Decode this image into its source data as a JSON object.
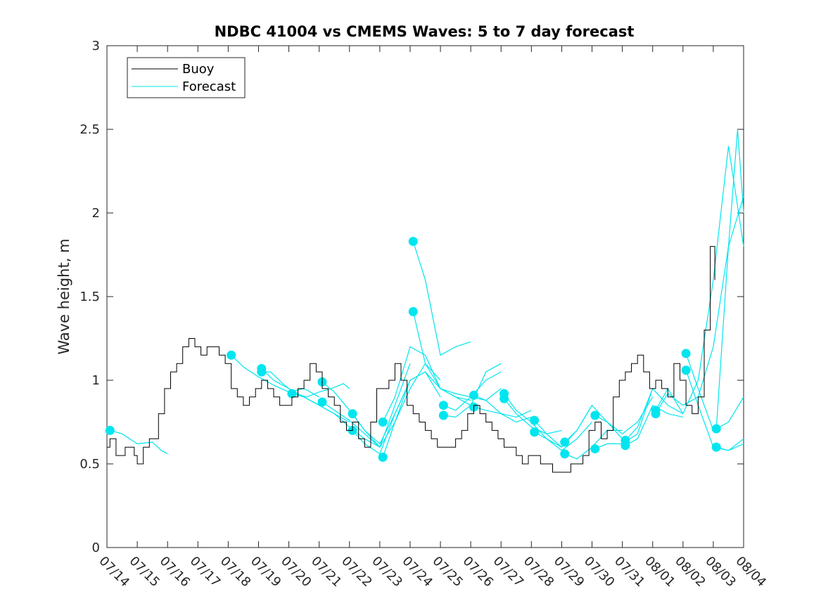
{
  "chart_data": {
    "type": "line",
    "title": "NDBC 41004 vs CMEMS Waves: 5 to 7 day forecast",
    "xlabel": "",
    "ylabel": "Wave height, m",
    "ylim": [
      0,
      3
    ],
    "yticks": [
      0,
      0.5,
      1,
      1.5,
      2,
      2.5,
      3
    ],
    "ytick_labels": [
      "0",
      "0.5",
      "1",
      "1.5",
      "2",
      "2.5",
      "3"
    ],
    "xlim_days": [
      0,
      21
    ],
    "x_tick_labels": [
      "07/14",
      "07/15",
      "07/16",
      "07/17",
      "07/18",
      "07/19",
      "07/20",
      "07/21",
      "07/22",
      "07/23",
      "07/24",
      "07/25",
      "07/26",
      "07/27",
      "07/28",
      "07/29",
      "07/30",
      "07/31",
      "08/01",
      "08/02",
      "08/03",
      "08/04"
    ],
    "grid": false,
    "legend": {
      "placement": "top-left",
      "entries": [
        "Buoy",
        "Forecast"
      ]
    },
    "colors": {
      "buoy": "#000000",
      "forecast": "#00e5ee"
    },
    "buoy": {
      "name": "Buoy",
      "points": [
        [
          0.0,
          0.6
        ],
        [
          0.1,
          0.65
        ],
        [
          0.3,
          0.55
        ],
        [
          0.6,
          0.6
        ],
        [
          0.9,
          0.55
        ],
        [
          1.0,
          0.5
        ],
        [
          1.2,
          0.6
        ],
        [
          1.4,
          0.65
        ],
        [
          1.7,
          0.8
        ],
        [
          1.9,
          0.95
        ],
        [
          2.1,
          1.05
        ],
        [
          2.3,
          1.1
        ],
        [
          2.5,
          1.2
        ],
        [
          2.7,
          1.25
        ],
        [
          2.9,
          1.2
        ],
        [
          3.1,
          1.15
        ],
        [
          3.3,
          1.2
        ],
        [
          3.5,
          1.2
        ],
        [
          3.7,
          1.15
        ],
        [
          3.9,
          1.1
        ],
        [
          4.1,
          0.95
        ],
        [
          4.3,
          0.9
        ],
        [
          4.5,
          0.85
        ],
        [
          4.7,
          0.9
        ],
        [
          4.9,
          0.95
        ],
        [
          5.1,
          1.0
        ],
        [
          5.3,
          0.95
        ],
        [
          5.5,
          0.9
        ],
        [
          5.7,
          0.85
        ],
        [
          5.9,
          0.85
        ],
        [
          6.1,
          0.9
        ],
        [
          6.3,
          0.95
        ],
        [
          6.5,
          1.0
        ],
        [
          6.7,
          1.1
        ],
        [
          6.9,
          1.05
        ],
        [
          7.1,
          0.95
        ],
        [
          7.3,
          0.9
        ],
        [
          7.5,
          0.85
        ],
        [
          7.7,
          0.75
        ],
        [
          7.9,
          0.7
        ],
        [
          8.1,
          0.75
        ],
        [
          8.3,
          0.65
        ],
        [
          8.5,
          0.6
        ],
        [
          8.7,
          0.75
        ],
        [
          8.9,
          0.95
        ],
        [
          9.1,
          0.95
        ],
        [
          9.3,
          1.0
        ],
        [
          9.5,
          1.1
        ],
        [
          9.7,
          1.0
        ],
        [
          9.9,
          0.85
        ],
        [
          10.1,
          0.8
        ],
        [
          10.3,
          0.75
        ],
        [
          10.5,
          0.7
        ],
        [
          10.7,
          0.65
        ],
        [
          10.9,
          0.6
        ],
        [
          11.1,
          0.6
        ],
        [
          11.3,
          0.6
        ],
        [
          11.5,
          0.65
        ],
        [
          11.7,
          0.7
        ],
        [
          11.9,
          0.8
        ],
        [
          12.1,
          0.85
        ],
        [
          12.3,
          0.8
        ],
        [
          12.5,
          0.75
        ],
        [
          12.7,
          0.7
        ],
        [
          12.9,
          0.65
        ],
        [
          13.1,
          0.6
        ],
        [
          13.3,
          0.6
        ],
        [
          13.5,
          0.55
        ],
        [
          13.7,
          0.5
        ],
        [
          13.9,
          0.55
        ],
        [
          14.1,
          0.55
        ],
        [
          14.3,
          0.5
        ],
        [
          14.5,
          0.5
        ],
        [
          14.7,
          0.45
        ],
        [
          14.9,
          0.45
        ],
        [
          15.1,
          0.45
        ],
        [
          15.3,
          0.5
        ],
        [
          15.5,
          0.5
        ],
        [
          15.7,
          0.55
        ],
        [
          15.9,
          0.7
        ],
        [
          16.1,
          0.75
        ],
        [
          16.3,
          0.65
        ],
        [
          16.5,
          0.7
        ],
        [
          16.7,
          0.9
        ],
        [
          16.9,
          1.0
        ],
        [
          17.1,
          1.05
        ],
        [
          17.3,
          1.1
        ],
        [
          17.5,
          1.15
        ],
        [
          17.7,
          1.05
        ],
        [
          17.9,
          0.95
        ],
        [
          18.1,
          1.0
        ],
        [
          18.3,
          0.95
        ],
        [
          18.5,
          0.9
        ],
        [
          18.7,
          1.1
        ],
        [
          18.9,
          1.0
        ],
        [
          19.1,
          0.85
        ],
        [
          19.3,
          0.8
        ],
        [
          19.5,
          0.9
        ],
        [
          19.7,
          1.3
        ],
        [
          19.9,
          1.8
        ],
        [
          20.05,
          1.6
        ]
      ]
    },
    "forecast": {
      "name": "Forecast",
      "runs": [
        [
          [
            0.1,
            0.7
          ],
          [
            0.5,
            0.68
          ],
          [
            1.0,
            0.62
          ],
          [
            1.5,
            0.63
          ],
          [
            1.8,
            0.58
          ],
          [
            2.0,
            0.56
          ]
        ],
        [
          [
            4.1,
            1.15
          ],
          [
            4.5,
            1.08
          ],
          [
            5.0,
            1.02
          ],
          [
            5.5,
            0.97
          ],
          [
            6.0,
            0.93
          ],
          [
            6.5,
            0.95
          ],
          [
            7.0,
            0.9
          ]
        ],
        [
          [
            5.1,
            1.07
          ],
          [
            5.5,
            1.0
          ],
          [
            6.0,
            0.95
          ],
          [
            6.5,
            0.9
          ],
          [
            7.0,
            0.85
          ],
          [
            7.5,
            0.8
          ],
          [
            8.0,
            0.75
          ]
        ],
        [
          [
            5.1,
            1.05
          ],
          [
            5.4,
            1.05
          ],
          [
            5.8,
            0.98
          ],
          [
            6.2,
            0.92
          ],
          [
            6.6,
            0.9
          ],
          [
            7.0,
            0.93
          ],
          [
            7.4,
            0.95
          ],
          [
            7.8,
            0.98
          ],
          [
            8.0,
            0.95
          ]
        ],
        [
          [
            6.1,
            0.92
          ],
          [
            6.5,
            0.9
          ],
          [
            7.0,
            0.85
          ],
          [
            7.5,
            0.8
          ],
          [
            8.0,
            0.72
          ],
          [
            8.5,
            0.65
          ],
          [
            9.0,
            0.6
          ]
        ],
        [
          [
            7.1,
            0.99
          ],
          [
            7.5,
            0.93
          ],
          [
            8.0,
            0.82
          ],
          [
            8.5,
            0.7
          ],
          [
            9.0,
            0.62
          ],
          [
            9.5,
            0.8
          ],
          [
            10.0,
            1.0
          ]
        ],
        [
          [
            7.1,
            0.87
          ],
          [
            7.5,
            0.82
          ],
          [
            8.0,
            0.76
          ],
          [
            8.5,
            0.68
          ],
          [
            9.0,
            0.6
          ],
          [
            9.5,
            0.85
          ],
          [
            10.0,
            1.1
          ]
        ],
        [
          [
            8.1,
            0.8
          ],
          [
            8.5,
            0.7
          ],
          [
            9.0,
            0.6
          ],
          [
            9.5,
            0.75
          ],
          [
            10.0,
            0.95
          ],
          [
            10.5,
            1.1
          ],
          [
            11.0,
            1.0
          ]
        ],
        [
          [
            8.1,
            0.7
          ],
          [
            8.5,
            0.62
          ],
          [
            9.0,
            0.56
          ],
          [
            9.5,
            0.8
          ],
          [
            10.0,
            1.0
          ],
          [
            10.5,
            1.05
          ],
          [
            11.0,
            0.9
          ]
        ],
        [
          [
            9.1,
            0.75
          ],
          [
            9.5,
            0.9
          ],
          [
            10.0,
            1.2
          ],
          [
            10.5,
            1.15
          ],
          [
            11.0,
            0.95
          ],
          [
            11.5,
            0.9
          ],
          [
            12.0,
            0.85
          ]
        ],
        [
          [
            9.1,
            0.54
          ],
          [
            9.5,
            0.75
          ],
          [
            10.0,
            1.0
          ],
          [
            10.5,
            1.05
          ],
          [
            11.0,
            0.95
          ],
          [
            11.5,
            0.9
          ],
          [
            12.0,
            0.88
          ]
        ],
        [
          [
            10.1,
            1.83
          ],
          [
            10.5,
            1.6
          ],
          [
            11.0,
            1.15
          ],
          [
            11.5,
            1.2
          ],
          [
            12.0,
            1.23
          ]
        ],
        [
          [
            10.1,
            1.41
          ],
          [
            10.5,
            1.1
          ],
          [
            11.0,
            0.95
          ],
          [
            11.5,
            0.92
          ],
          [
            12.0,
            0.9
          ],
          [
            12.5,
            0.88
          ],
          [
            13.0,
            0.95
          ]
        ],
        [
          [
            11.1,
            0.85
          ],
          [
            11.5,
            0.82
          ],
          [
            12.0,
            0.9
          ],
          [
            12.5,
            1.0
          ],
          [
            13.0,
            1.05
          ]
        ],
        [
          [
            11.1,
            0.79
          ],
          [
            11.5,
            0.78
          ],
          [
            12.0,
            0.85
          ],
          [
            12.5,
            1.05
          ],
          [
            13.0,
            1.1
          ]
        ],
        [
          [
            12.1,
            0.91
          ],
          [
            12.5,
            0.88
          ],
          [
            13.0,
            0.8
          ],
          [
            13.5,
            0.75
          ],
          [
            14.0,
            0.78
          ]
        ],
        [
          [
            12.1,
            0.84
          ],
          [
            12.5,
            0.82
          ],
          [
            13.0,
            0.8
          ],
          [
            13.5,
            0.78
          ],
          [
            14.0,
            0.82
          ]
        ],
        [
          [
            13.1,
            0.92
          ],
          [
            13.5,
            0.82
          ],
          [
            14.0,
            0.75
          ],
          [
            14.5,
            0.65
          ],
          [
            15.0,
            0.6
          ]
        ],
        [
          [
            13.1,
            0.89
          ],
          [
            13.5,
            0.8
          ],
          [
            14.0,
            0.72
          ],
          [
            14.5,
            0.68
          ],
          [
            15.0,
            0.7
          ]
        ],
        [
          [
            14.1,
            0.76
          ],
          [
            14.5,
            0.68
          ],
          [
            15.0,
            0.6
          ],
          [
            15.5,
            0.7
          ],
          [
            16.0,
            0.85
          ]
        ],
        [
          [
            14.1,
            0.69
          ],
          [
            14.5,
            0.65
          ],
          [
            15.0,
            0.58
          ],
          [
            15.5,
            0.65
          ],
          [
            16.0,
            0.75
          ]
        ],
        [
          [
            15.1,
            0.63
          ],
          [
            15.5,
            0.7
          ],
          [
            16.0,
            0.85
          ],
          [
            16.5,
            0.75
          ],
          [
            17.0,
            0.65
          ]
        ],
        [
          [
            15.1,
            0.56
          ],
          [
            15.5,
            0.53
          ],
          [
            16.0,
            0.6
          ],
          [
            16.5,
            0.7
          ],
          [
            17.0,
            0.7
          ]
        ],
        [
          [
            16.1,
            0.79
          ],
          [
            16.5,
            0.75
          ],
          [
            17.0,
            0.68
          ],
          [
            17.5,
            0.75
          ],
          [
            18.0,
            0.9
          ]
        ],
        [
          [
            16.1,
            0.59
          ],
          [
            16.5,
            0.62
          ],
          [
            17.0,
            0.62
          ],
          [
            17.5,
            0.68
          ],
          [
            18.0,
            0.95
          ]
        ],
        [
          [
            17.1,
            0.64
          ],
          [
            17.5,
            0.72
          ],
          [
            18.0,
            0.95
          ],
          [
            18.5,
            0.85
          ],
          [
            19.0,
            0.8
          ]
        ],
        [
          [
            17.1,
            0.61
          ],
          [
            17.5,
            0.65
          ],
          [
            18.0,
            0.85
          ],
          [
            18.5,
            0.8
          ],
          [
            19.0,
            0.78
          ]
        ],
        [
          [
            18.1,
            0.82
          ],
          [
            18.5,
            0.95
          ],
          [
            19.0,
            0.8
          ],
          [
            19.5,
            1.0
          ],
          [
            20.0,
            1.6
          ],
          [
            20.5,
            2.4
          ],
          [
            21.0,
            1.8
          ]
        ],
        [
          [
            18.1,
            0.8
          ],
          [
            18.5,
            0.92
          ],
          [
            19.0,
            0.85
          ],
          [
            19.5,
            0.9
          ],
          [
            20.0,
            1.2
          ],
          [
            20.5,
            1.8
          ],
          [
            21.0,
            2.1
          ]
        ],
        [
          [
            19.1,
            1.16
          ],
          [
            19.5,
            0.95
          ],
          [
            20.0,
            0.7
          ],
          [
            20.5,
            0.75
          ],
          [
            21.0,
            0.9
          ]
        ],
        [
          [
            19.1,
            1.06
          ],
          [
            19.5,
            0.85
          ],
          [
            20.0,
            0.6
          ],
          [
            20.5,
            0.58
          ],
          [
            21.0,
            0.65
          ]
        ],
        [
          [
            20.1,
            0.71
          ],
          [
            20.5,
            1.8
          ],
          [
            20.8,
            2.5
          ],
          [
            21.0,
            2.0
          ]
        ],
        [
          [
            20.1,
            0.6
          ],
          [
            20.5,
            0.58
          ],
          [
            21.0,
            0.62
          ]
        ]
      ]
    }
  }
}
